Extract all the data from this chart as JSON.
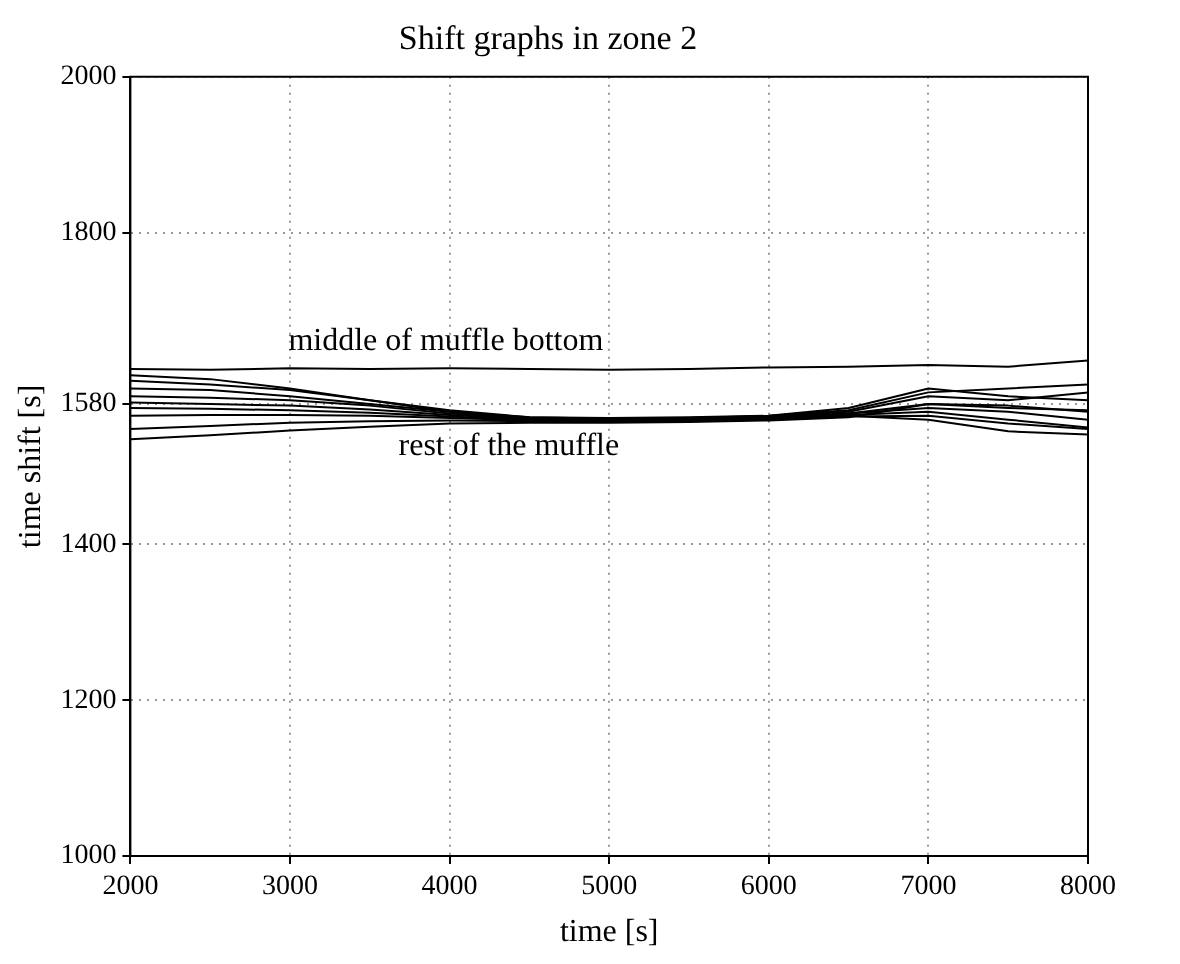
{
  "chart_data": {
    "type": "line",
    "title": "Shift graphs in zone 2",
    "xlabel": "time [s]",
    "ylabel": "time shift [s]",
    "xlim": [
      2000,
      8000
    ],
    "xticks": [
      2000,
      3000,
      4000,
      5000,
      6000,
      7000,
      8000
    ],
    "ylim": [
      1000,
      2000
    ],
    "yticks": [
      1000,
      1200,
      1400,
      1580,
      1800,
      2000
    ],
    "grid": true,
    "marker": "none",
    "line_style": "solid",
    "x": [
      2000,
      2500,
      3000,
      3500,
      4000,
      4500,
      5000,
      5500,
      6000,
      6500,
      7000,
      7500,
      8000
    ],
    "series": [
      {
        "color": "#000000",
        "values": [
          1625,
          1624,
          1626,
          1625,
          1626,
          1625,
          1624,
          1625,
          1627,
          1628,
          1630,
          1628,
          1636
        ]
      },
      {
        "color": "#000000",
        "values": [
          1617,
          1612,
          1600,
          1585,
          1570,
          1562,
          1560,
          1561,
          1563,
          1568,
          1580,
          1575,
          1572
        ]
      },
      {
        "color": "#000000",
        "values": [
          1610,
          1605,
          1598,
          1585,
          1572,
          1563,
          1561,
          1562,
          1564,
          1570,
          1590,
          1585,
          1595
        ]
      },
      {
        "color": "#000000",
        "values": [
          1600,
          1598,
          1590,
          1580,
          1570,
          1563,
          1562,
          1563,
          1565,
          1572,
          1595,
          1600,
          1605
        ]
      },
      {
        "color": "#000000",
        "values": [
          1590,
          1588,
          1585,
          1578,
          1568,
          1562,
          1561,
          1562,
          1565,
          1575,
          1600,
          1590,
          1585
        ]
      },
      {
        "color": "#000000",
        "values": [
          1582,
          1580,
          1578,
          1573,
          1566,
          1561,
          1560,
          1561,
          1563,
          1568,
          1575,
          1570,
          1560
        ]
      },
      {
        "color": "#000000",
        "values": [
          1575,
          1574,
          1572,
          1569,
          1564,
          1560,
          1559,
          1560,
          1562,
          1566,
          1570,
          1560,
          1550
        ]
      },
      {
        "color": "#000000",
        "values": [
          1565,
          1566,
          1566,
          1565,
          1562,
          1559,
          1558,
          1559,
          1561,
          1565,
          1560,
          1545,
          1541
        ]
      },
      {
        "color": "#000000",
        "values": [
          1548,
          1552,
          1556,
          1558,
          1559,
          1558,
          1557,
          1558,
          1560,
          1564,
          1565,
          1555,
          1548
        ]
      },
      {
        "color": "#000000",
        "values": [
          1535,
          1540,
          1546,
          1551,
          1555,
          1556,
          1556,
          1557,
          1559,
          1563,
          1580,
          1578,
          1570
        ]
      }
    ],
    "annotations": [
      "middle of muffle bottom",
      "rest of the muffle"
    ]
  }
}
